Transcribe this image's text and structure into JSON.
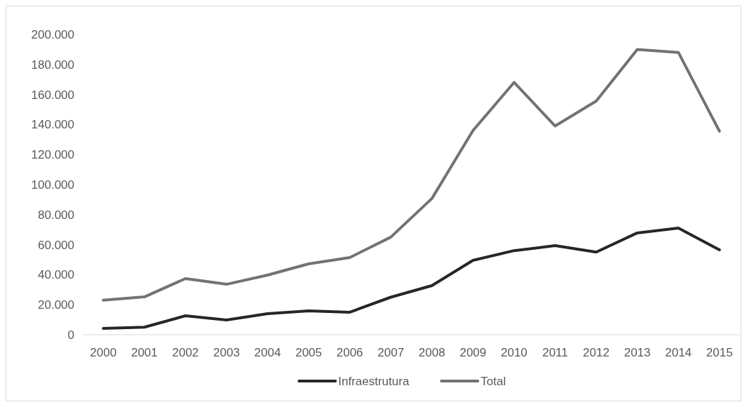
{
  "chart_data": {
    "type": "line",
    "categories": [
      "2000",
      "2001",
      "2002",
      "2003",
      "2004",
      "2005",
      "2006",
      "2007",
      "2008",
      "2009",
      "2010",
      "2011",
      "2012",
      "2013",
      "2014",
      "2015"
    ],
    "series": [
      {
        "name": "Infraestrutura",
        "color": "#262626",
        "values": [
          4200,
          5000,
          12600,
          9800,
          14000,
          15900,
          15000,
          25000,
          32700,
          49500,
          56000,
          59300,
          55000,
          67800,
          71000,
          56500
        ]
      },
      {
        "name": "Total",
        "color": "#767171",
        "values": [
          23000,
          25200,
          37400,
          33600,
          39700,
          47200,
          51400,
          65000,
          90700,
          136000,
          168000,
          139000,
          155600,
          190000,
          188000,
          135500
        ]
      }
    ],
    "ylim": [
      0,
      200000
    ],
    "yticks": [
      {
        "value": 0,
        "label": "0"
      },
      {
        "value": 20000,
        "label": "20.000"
      },
      {
        "value": 40000,
        "label": "40.000"
      },
      {
        "value": 60000,
        "label": "60.000"
      },
      {
        "value": 80000,
        "label": "80.000"
      },
      {
        "value": 100000,
        "label": "100.000"
      },
      {
        "value": 120000,
        "label": "120.000"
      },
      {
        "value": 140000,
        "label": "140.000"
      },
      {
        "value": 160000,
        "label": "160.000"
      },
      {
        "value": 180000,
        "label": "180.000"
      },
      {
        "value": 200000,
        "label": "200.000"
      }
    ],
    "legend": "bottom",
    "grid": false,
    "marker": "none",
    "line_style": "solid"
  }
}
